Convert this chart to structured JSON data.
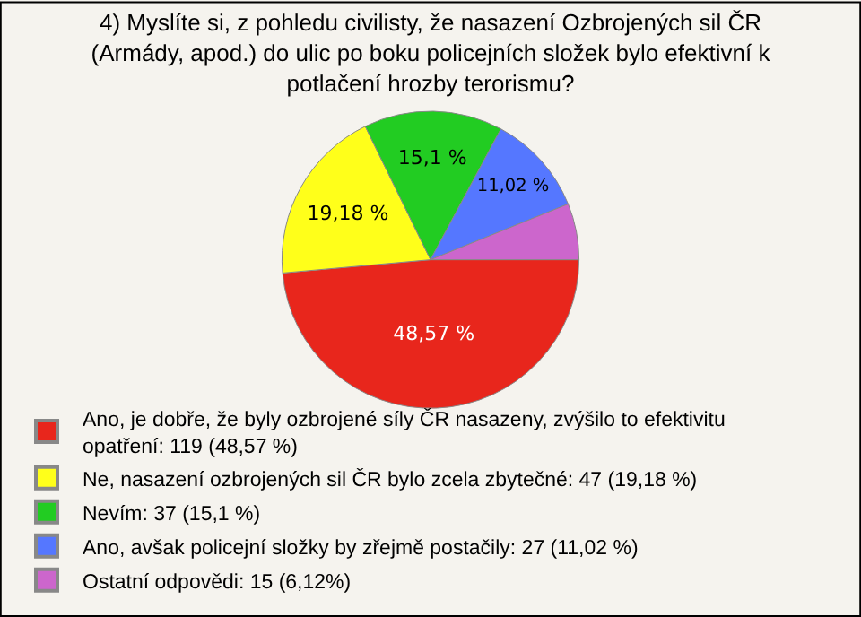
{
  "chart_data": {
    "type": "pie",
    "title": "4) Myslíte si, z pohledu civilisty, že nasazení Ozbrojených sil ČR (Armády, apod.) do ulic po boku policejních složek bylo efektivní k potlačení hrozby terorismu?",
    "categories": [
      "Ano, je dobře, že byly ozbrojené síly ČR nasazeny, zvýšilo to efektivitu opatření: 119 (48,57 %)",
      "Ne, nasazení ozbrojených sil ČR bylo zcela zbytečné: 47 (19,18 %)",
      "Nevím: 37 (15,1 %)",
      "Ano, avšak policejní složky by zřejmě postačily: 27 (11,02 %)",
      "Ostatní odpovědi: 15 (6,12%)"
    ],
    "values": [
      48.57,
      19.18,
      15.1,
      11.02,
      6.12
    ],
    "value_labels": [
      "48,57 %",
      "19,18 %",
      "15,1 %",
      "11,02 %",
      null
    ],
    "colors": [
      "#e8261c",
      "#ffff1a",
      "#22cc22",
      "#5577ff",
      "#cc66cc"
    ],
    "legend": "bottom"
  }
}
